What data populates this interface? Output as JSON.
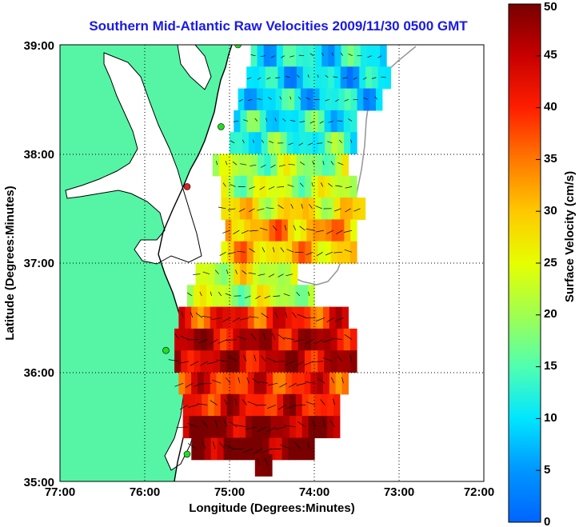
{
  "chart_data": {
    "type": "heatmap",
    "title": "Southern Mid-Atlantic Raw Velocities 2009/11/30 0500 GMT",
    "xlabel": "Longitude (Degrees:Minutes)",
    "ylabel": "Latitude (Degrees:Minutes)",
    "colorbar_label": "Surface Velocity (cm/s)",
    "xlim": [
      -77,
      -72
    ],
    "ylim": [
      35,
      39
    ],
    "x_ticks": [
      {
        "value": -77,
        "label": "77:00"
      },
      {
        "value": -76,
        "label": "76:00"
      },
      {
        "value": -75,
        "label": "75:00"
      },
      {
        "value": -74,
        "label": "74:00"
      },
      {
        "value": -73,
        "label": "73:00"
      },
      {
        "value": -72,
        "label": "72:00"
      }
    ],
    "y_ticks": [
      {
        "value": 35,
        "label": "35:00"
      },
      {
        "value": 36,
        "label": "36:00"
      },
      {
        "value": 37,
        "label": "37:00"
      },
      {
        "value": 38,
        "label": "38:00"
      },
      {
        "value": 39,
        "label": "39:00"
      }
    ],
    "colorbar": {
      "range": [
        0,
        50
      ],
      "ticks": [
        {
          "value": 0,
          "label": "0"
        },
        {
          "value": 5,
          "label": "5"
        },
        {
          "value": 10,
          "label": "10"
        },
        {
          "value": 15,
          "label": "15"
        },
        {
          "value": 20,
          "label": "20"
        },
        {
          "value": 25,
          "label": "25"
        },
        {
          "value": 30,
          "label": "30"
        },
        {
          "value": 35,
          "label": "35"
        },
        {
          "value": 40,
          "label": "40"
        },
        {
          "value": 45,
          "label": "45"
        },
        {
          "value": 50,
          "label": "50"
        }
      ]
    },
    "grid": "dotted",
    "land_color": "#55f5a5",
    "coastline_color": "#000000",
    "velocity_field": [
      {
        "lat": 38.9,
        "lon_min": -74.75,
        "lon_max": -73.15,
        "speed": 11
      },
      {
        "lat": 38.7,
        "lon_min": -74.8,
        "lon_max": -73.1,
        "speed": 9
      },
      {
        "lat": 38.5,
        "lon_min": -74.9,
        "lon_max": -73.2,
        "speed": 10
      },
      {
        "lat": 38.3,
        "lon_min": -74.95,
        "lon_max": -73.5,
        "speed": 12
      },
      {
        "lat": 38.1,
        "lon_min": -75.0,
        "lon_max": -73.5,
        "speed": 14
      },
      {
        "lat": 37.9,
        "lon_min": -75.2,
        "lon_max": -73.6,
        "speed": 20
      },
      {
        "lat": 37.7,
        "lon_min": -75.1,
        "lon_max": -73.5,
        "speed": 22
      },
      {
        "lat": 37.5,
        "lon_min": -75.1,
        "lon_max": -73.4,
        "speed": 27
      },
      {
        "lat": 37.3,
        "lon_min": -75.05,
        "lon_max": -73.5,
        "speed": 32
      },
      {
        "lat": 37.1,
        "lon_min": -75.1,
        "lon_max": -73.5,
        "speed": 30
      },
      {
        "lat": 36.9,
        "lon_min": -75.4,
        "lon_max": -74.2,
        "speed": 24
      },
      {
        "lat": 36.7,
        "lon_min": -75.5,
        "lon_max": -74.0,
        "speed": 22
      },
      {
        "lat": 36.5,
        "lon_min": -75.6,
        "lon_max": -73.6,
        "speed": 40
      },
      {
        "lat": 36.3,
        "lon_min": -75.65,
        "lon_max": -73.5,
        "speed": 45
      },
      {
        "lat": 36.1,
        "lon_min": -75.65,
        "lon_max": -73.5,
        "speed": 45
      },
      {
        "lat": 35.9,
        "lon_min": -75.6,
        "lon_max": -73.6,
        "speed": 40
      },
      {
        "lat": 35.7,
        "lon_min": -75.55,
        "lon_max": -73.7,
        "speed": 42
      },
      {
        "lat": 35.5,
        "lon_min": -75.55,
        "lon_max": -73.7,
        "speed": 48
      },
      {
        "lat": 35.3,
        "lon_min": -75.45,
        "lon_max": -74.0,
        "speed": 50
      },
      {
        "lat": 35.15,
        "lon_min": -74.7,
        "lon_max": -74.5,
        "speed": 50
      }
    ],
    "stations": [
      {
        "lon": -74.9,
        "lat": 39.0,
        "color": "#22dd22"
      },
      {
        "lon": -75.1,
        "lat": 38.25,
        "color": "#22dd22"
      },
      {
        "lon": -75.5,
        "lat": 37.7,
        "color": "#dd2222"
      },
      {
        "lon": -75.75,
        "lat": 36.2,
        "color": "#22dd22"
      },
      {
        "lon": -75.5,
        "lat": 35.25,
        "color": "#22dd22"
      }
    ]
  }
}
